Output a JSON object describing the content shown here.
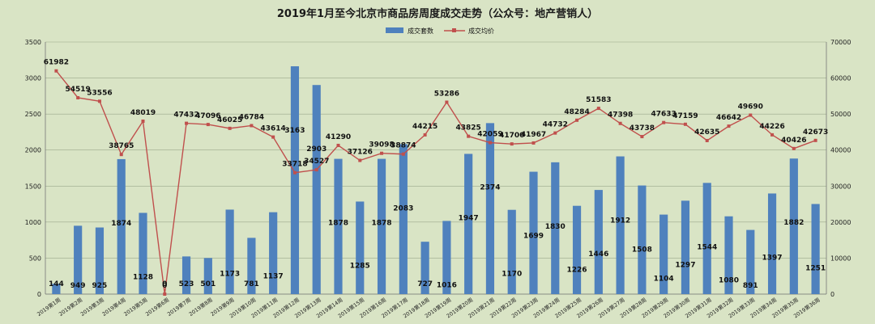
{
  "chart_data": {
    "type": "bar",
    "title": "2019年1月至今北京市商品房周度成交走势（公众号：地产营销人）",
    "categories": [
      "2019第1周",
      "2019第2周",
      "2019第3周",
      "2019第4周",
      "2019第5周",
      "2019第6周",
      "2019第7周",
      "2019第8周",
      "2019第9周",
      "2019第10周",
      "2019第11周",
      "2019第12周",
      "2019第13周",
      "2019第14周",
      "2019第15周",
      "2019第16周",
      "2019第17周",
      "2019第18周",
      "2019第19周",
      "2019第20周",
      "2019第21周",
      "2019第22周",
      "2019第23周",
      "2019第24周",
      "2019第25周",
      "2019第26周",
      "2019第27周",
      "2019第28周",
      "2019第29周",
      "2019第30周",
      "2019第31周",
      "2019第32周",
      "2019第33周",
      "2019第34周",
      "2019第35周",
      "2019第36周"
    ],
    "series": [
      {
        "name": "成交套数",
        "type": "bar",
        "axis": "left",
        "color": "#4f81bd",
        "values": [
          144,
          949,
          925,
          1874,
          1128,
          0,
          523,
          501,
          1173,
          781,
          1137,
          3163,
          2903,
          1878,
          1285,
          1878,
          2083,
          727,
          1016,
          1947,
          2374,
          1170,
          1699,
          1830,
          1226,
          1446,
          1912,
          1508,
          1104,
          1297,
          1544,
          1080,
          891,
          1397,
          1882,
          1251
        ]
      },
      {
        "name": "成交均价",
        "type": "line",
        "axis": "right",
        "color": "#c0504d",
        "values": [
          61982,
          54519,
          53556,
          38765,
          48019,
          0,
          47432,
          47096,
          46025,
          46784,
          43614,
          33718,
          34527,
          41290,
          37126,
          39098,
          38874,
          44215,
          53286,
          43825,
          42059,
          41700,
          41967,
          44732,
          48284,
          51583,
          47398,
          43738,
          47633,
          47159,
          42635,
          46642,
          49690,
          44226,
          40426,
          42673
        ],
        "labels": [
          "61982",
          "54519",
          "53556",
          "38765",
          "48019",
          "0",
          "47432",
          "47096",
          "46025",
          "46784",
          "43614",
          "33718",
          "34527",
          "41290",
          "37126",
          "39098",
          "38874",
          "44215",
          "53286",
          "43825",
          "42059",
          "41700",
          "41967",
          "44732",
          "48284",
          "51583",
          "47398",
          "43738",
          "47633",
          "47159",
          "42635",
          "46642",
          "49690",
          "44226",
          "40426",
          "42673"
        ]
      }
    ],
    "bar_labels": [
      "144",
      "949",
      "925",
      "1874",
      "1128",
      "0",
      "523",
      "501",
      "1173",
      "781",
      "1137",
      "3163",
      "2903",
      "1878",
      "1285",
      "1878",
      "2083",
      "727",
      "1016",
      "1947",
      "2374",
      "1170",
      "1699",
      "1830",
      "1226",
      "1446",
      "1912",
      "1508",
      "1104",
      "1297",
      "1544",
      "1080",
      "891",
      "1397",
      "1882",
      "1251"
    ],
    "y_left": {
      "min": 0,
      "max": 3500,
      "ticks": [
        "0",
        "500",
        "1000",
        "1500",
        "2000",
        "2500",
        "3000",
        "3500"
      ]
    },
    "y_right": {
      "min": 0,
      "max": 70000,
      "ticks": [
        "0",
        "10000",
        "20000",
        "30000",
        "40000",
        "50000",
        "60000",
        "70000"
      ]
    },
    "grid": true,
    "legend_position": "top"
  }
}
